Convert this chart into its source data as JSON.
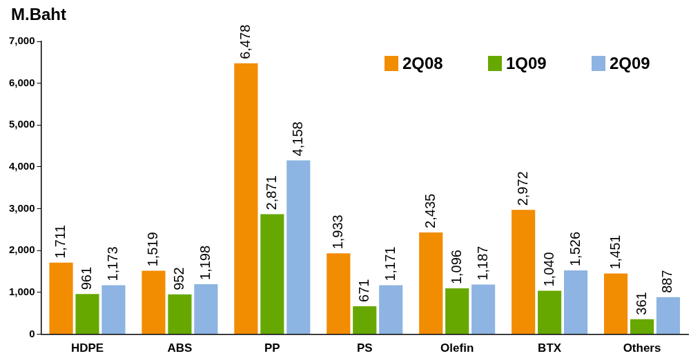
{
  "chart_data": {
    "type": "bar",
    "ylabel": "M.Baht",
    "categories": [
      "HDPE",
      "ABS",
      "PP",
      "PS",
      "Olefin",
      "BTX",
      "Others"
    ],
    "series": [
      {
        "name": "2Q08",
        "color": "#f28c00",
        "values": [
          1711,
          1519,
          6478,
          1933,
          2435,
          2972,
          1451
        ],
        "value_labels": [
          "1,711",
          "1,519",
          "6,478",
          "1,933",
          "2,435",
          "2,972",
          "1,451"
        ]
      },
      {
        "name": "1Q09",
        "color": "#66a800",
        "values": [
          961,
          952,
          2871,
          671,
          1096,
          1040,
          361
        ],
        "value_labels": [
          "961",
          "952",
          "2,871",
          "671",
          "1,096",
          "1,040",
          "361"
        ]
      },
      {
        "name": "2Q09",
        "color": "#8db4e2",
        "values": [
          1173,
          1198,
          4158,
          1171,
          1187,
          1526,
          887
        ],
        "value_labels": [
          "1,173",
          "1,198",
          "4,158",
          "1,171",
          "1,187",
          "1,526",
          "887"
        ]
      }
    ],
    "ylim": [
      0,
      7000
    ],
    "yticks": [
      {
        "value": 0,
        "label": "0"
      },
      {
        "value": 1000,
        "label": "1,000"
      },
      {
        "value": 2000,
        "label": "2,000"
      },
      {
        "value": 3000,
        "label": "3,000"
      },
      {
        "value": 4000,
        "label": "4,000"
      },
      {
        "value": 5000,
        "label": "5,000"
      },
      {
        "value": 6000,
        "label": "6,000"
      },
      {
        "value": 7000,
        "label": "7,000"
      }
    ],
    "grid": false,
    "legend": "top right"
  }
}
